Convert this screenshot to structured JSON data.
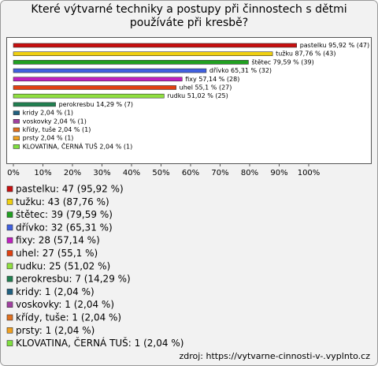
{
  "chart_data": {
    "type": "hbar",
    "title": "Které výtvarné techniky a postupy při činnostech s dětmi používáte při kresbě?",
    "categories": [
      "pastelku",
      "tužku",
      "štětec",
      "dřívko",
      "fixy",
      "uhel",
      "rudku",
      "perokresbu",
      "kridy",
      "voskovky",
      "křídy, tuše",
      "prsty",
      "KLOVATINA, ČERNÁ TUŠ"
    ],
    "values": [
      95.92,
      87.76,
      79.59,
      65.31,
      57.14,
      55.1,
      51.02,
      14.29,
      2.04,
      2.04,
      2.04,
      2.04,
      2.04
    ],
    "value_labels": [
      "pastelku 95,92 % (47)",
      "tužku 87,76 % (43)",
      "štětec 79,59 % (39)",
      "dřívko 65,31 % (32)",
      "fixy 57,14 % (28)",
      "uhel 55,1 % (27)",
      "rudku 51,02 % (25)",
      "perokresbu 14,29 % (7)",
      "kridy 2,04 % (1)",
      "voskovky 2,04 % (1)",
      "křídy, tuše 2,04 % (1)",
      "prsty 2,04 % (1)",
      "KLOVATINA, ČERNÁ TUŠ 2,04 % (1)"
    ],
    "colors": [
      "#c81010",
      "#f0d010",
      "#20a020",
      "#4060e0",
      "#c020c0",
      "#e04010",
      "#90e040",
      "#208050",
      "#206080",
      "#a040a0",
      "#e07020",
      "#f0a020",
      "#80e040"
    ],
    "legend": [
      "pastelku: 47 (95,92 %)",
      "tužku: 43 (87,76 %)",
      "štětec: 39 (79,59 %)",
      "dřívko: 32 (65,31 %)",
      "fixy: 28 (57,14 %)",
      "uhel: 27 (55,1 %)",
      "rudku: 25 (51,02 %)",
      "perokresbu: 7 (14,29 %)",
      "kridy: 1 (2,04 %)",
      "voskovky: 1 (2,04 %)",
      "křídy, tuše: 1 (2,04 %)",
      "prsty: 1 (2,04 %)",
      "KLOVATINA, ČERNÁ TUŠ: 1 (2,04 %)"
    ],
    "xlim": [
      0,
      120
    ],
    "xticks": [
      {
        "value": 0,
        "label": "0%"
      },
      {
        "value": 10,
        "label": "10%"
      },
      {
        "value": 20,
        "label": "20%"
      },
      {
        "value": 30,
        "label": "30%"
      },
      {
        "value": 40,
        "label": "40%"
      },
      {
        "value": 50,
        "label": "50%"
      },
      {
        "value": 60,
        "label": "60%"
      },
      {
        "value": 70,
        "label": "70%"
      },
      {
        "value": 80,
        "label": "80%"
      },
      {
        "value": 90,
        "label": "90%"
      },
      {
        "value": 100,
        "label": "100%"
      }
    ],
    "grid": false,
    "source": "zdroj: https://vytvarne-cinnosti-v-.vyplnto.cz"
  }
}
